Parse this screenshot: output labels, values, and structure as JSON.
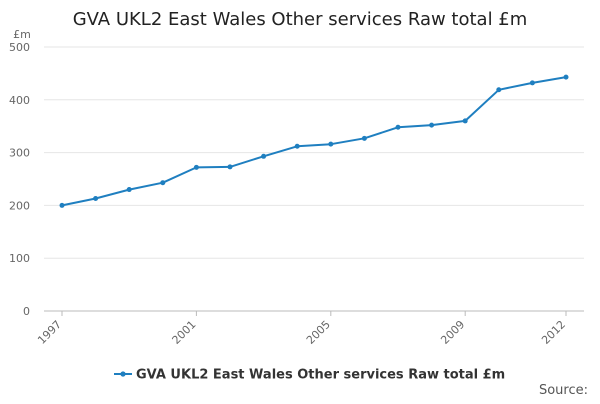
{
  "chart_data": {
    "type": "line",
    "title": "GVA UKL2 East Wales Other services Raw total £m",
    "ylabel": "£m",
    "xlabel": "",
    "ylim": [
      0,
      500
    ],
    "yticks": [
      0,
      100,
      200,
      300,
      400,
      500
    ],
    "x": [
      1997,
      1998,
      1999,
      2000,
      2001,
      2002,
      2003,
      2004,
      2005,
      2006,
      2007,
      2008,
      2009,
      2010,
      2011,
      2012
    ],
    "x_tick_labels": [
      "1997",
      "2001",
      "2005",
      "2009",
      "2012"
    ],
    "series": [
      {
        "name": "GVA UKL2 East Wales Other services Raw total £m",
        "color": "#1f7fc0",
        "values": [
          200,
          213,
          230,
          243,
          272,
          273,
          293,
          312,
          316,
          327,
          348,
          352,
          360,
          419,
          432,
          443
        ]
      }
    ],
    "legend_position": "bottom",
    "grid": true,
    "source_label": "Source:"
  }
}
